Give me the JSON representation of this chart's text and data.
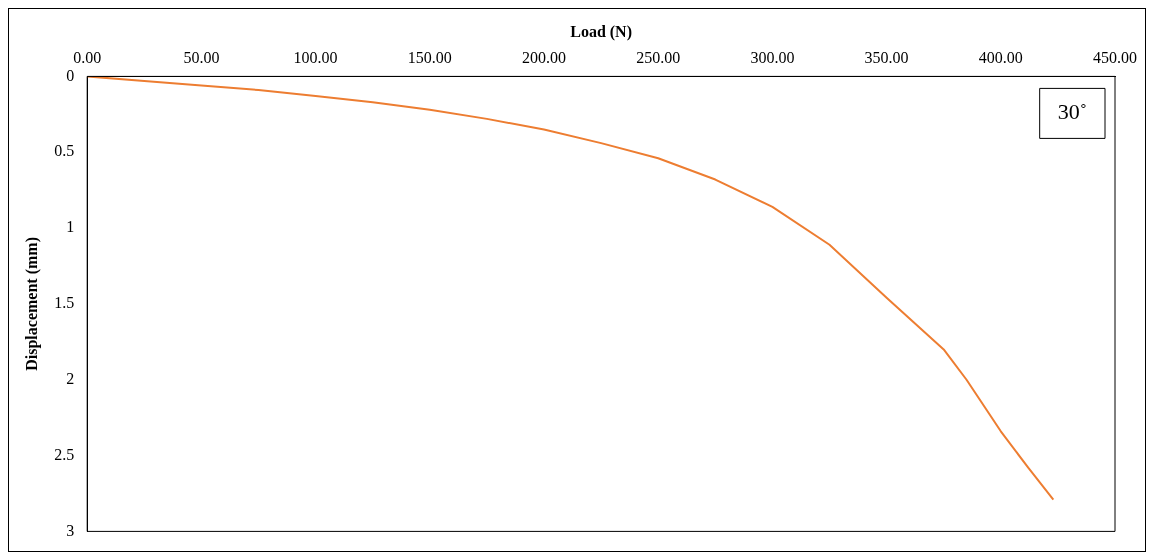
{
  "chart_data": {
    "type": "line",
    "xlabel": "Load (N)",
    "ylabel": "Displacement (mm)",
    "series": [
      {
        "color": "#ed7d31",
        "x": [
          0,
          25,
          50,
          75,
          100,
          125,
          150,
          175,
          200,
          225,
          250,
          275,
          300,
          325,
          350,
          375,
          385,
          400,
          412,
          423
        ],
        "values": [
          0,
          0.03,
          0.06,
          0.09,
          0.13,
          0.17,
          0.22,
          0.28,
          0.35,
          0.44,
          0.54,
          0.68,
          0.86,
          1.11,
          1.46,
          1.8,
          2.0,
          2.34,
          2.58,
          2.79
        ]
      }
    ],
    "xlim": [
      0,
      450
    ],
    "xticks": [
      {
        "value": 0,
        "label": "0.00"
      },
      {
        "value": 50,
        "label": "50.00"
      },
      {
        "value": 100,
        "label": "100.00"
      },
      {
        "value": 150,
        "label": "150.00"
      },
      {
        "value": 200,
        "label": "200.00"
      },
      {
        "value": 250,
        "label": "250.00"
      },
      {
        "value": 300,
        "label": "300.00"
      },
      {
        "value": 350,
        "label": "350.00"
      },
      {
        "value": 400,
        "label": "400.00"
      },
      {
        "value": 450,
        "label": "450.00"
      }
    ],
    "ylim": [
      3,
      0
    ],
    "yticks": [
      0,
      0.5,
      1,
      1.5,
      2,
      2.5,
      3
    ],
    "marker": "none",
    "line_style": "solid",
    "annotations": [
      "30˚"
    ]
  }
}
